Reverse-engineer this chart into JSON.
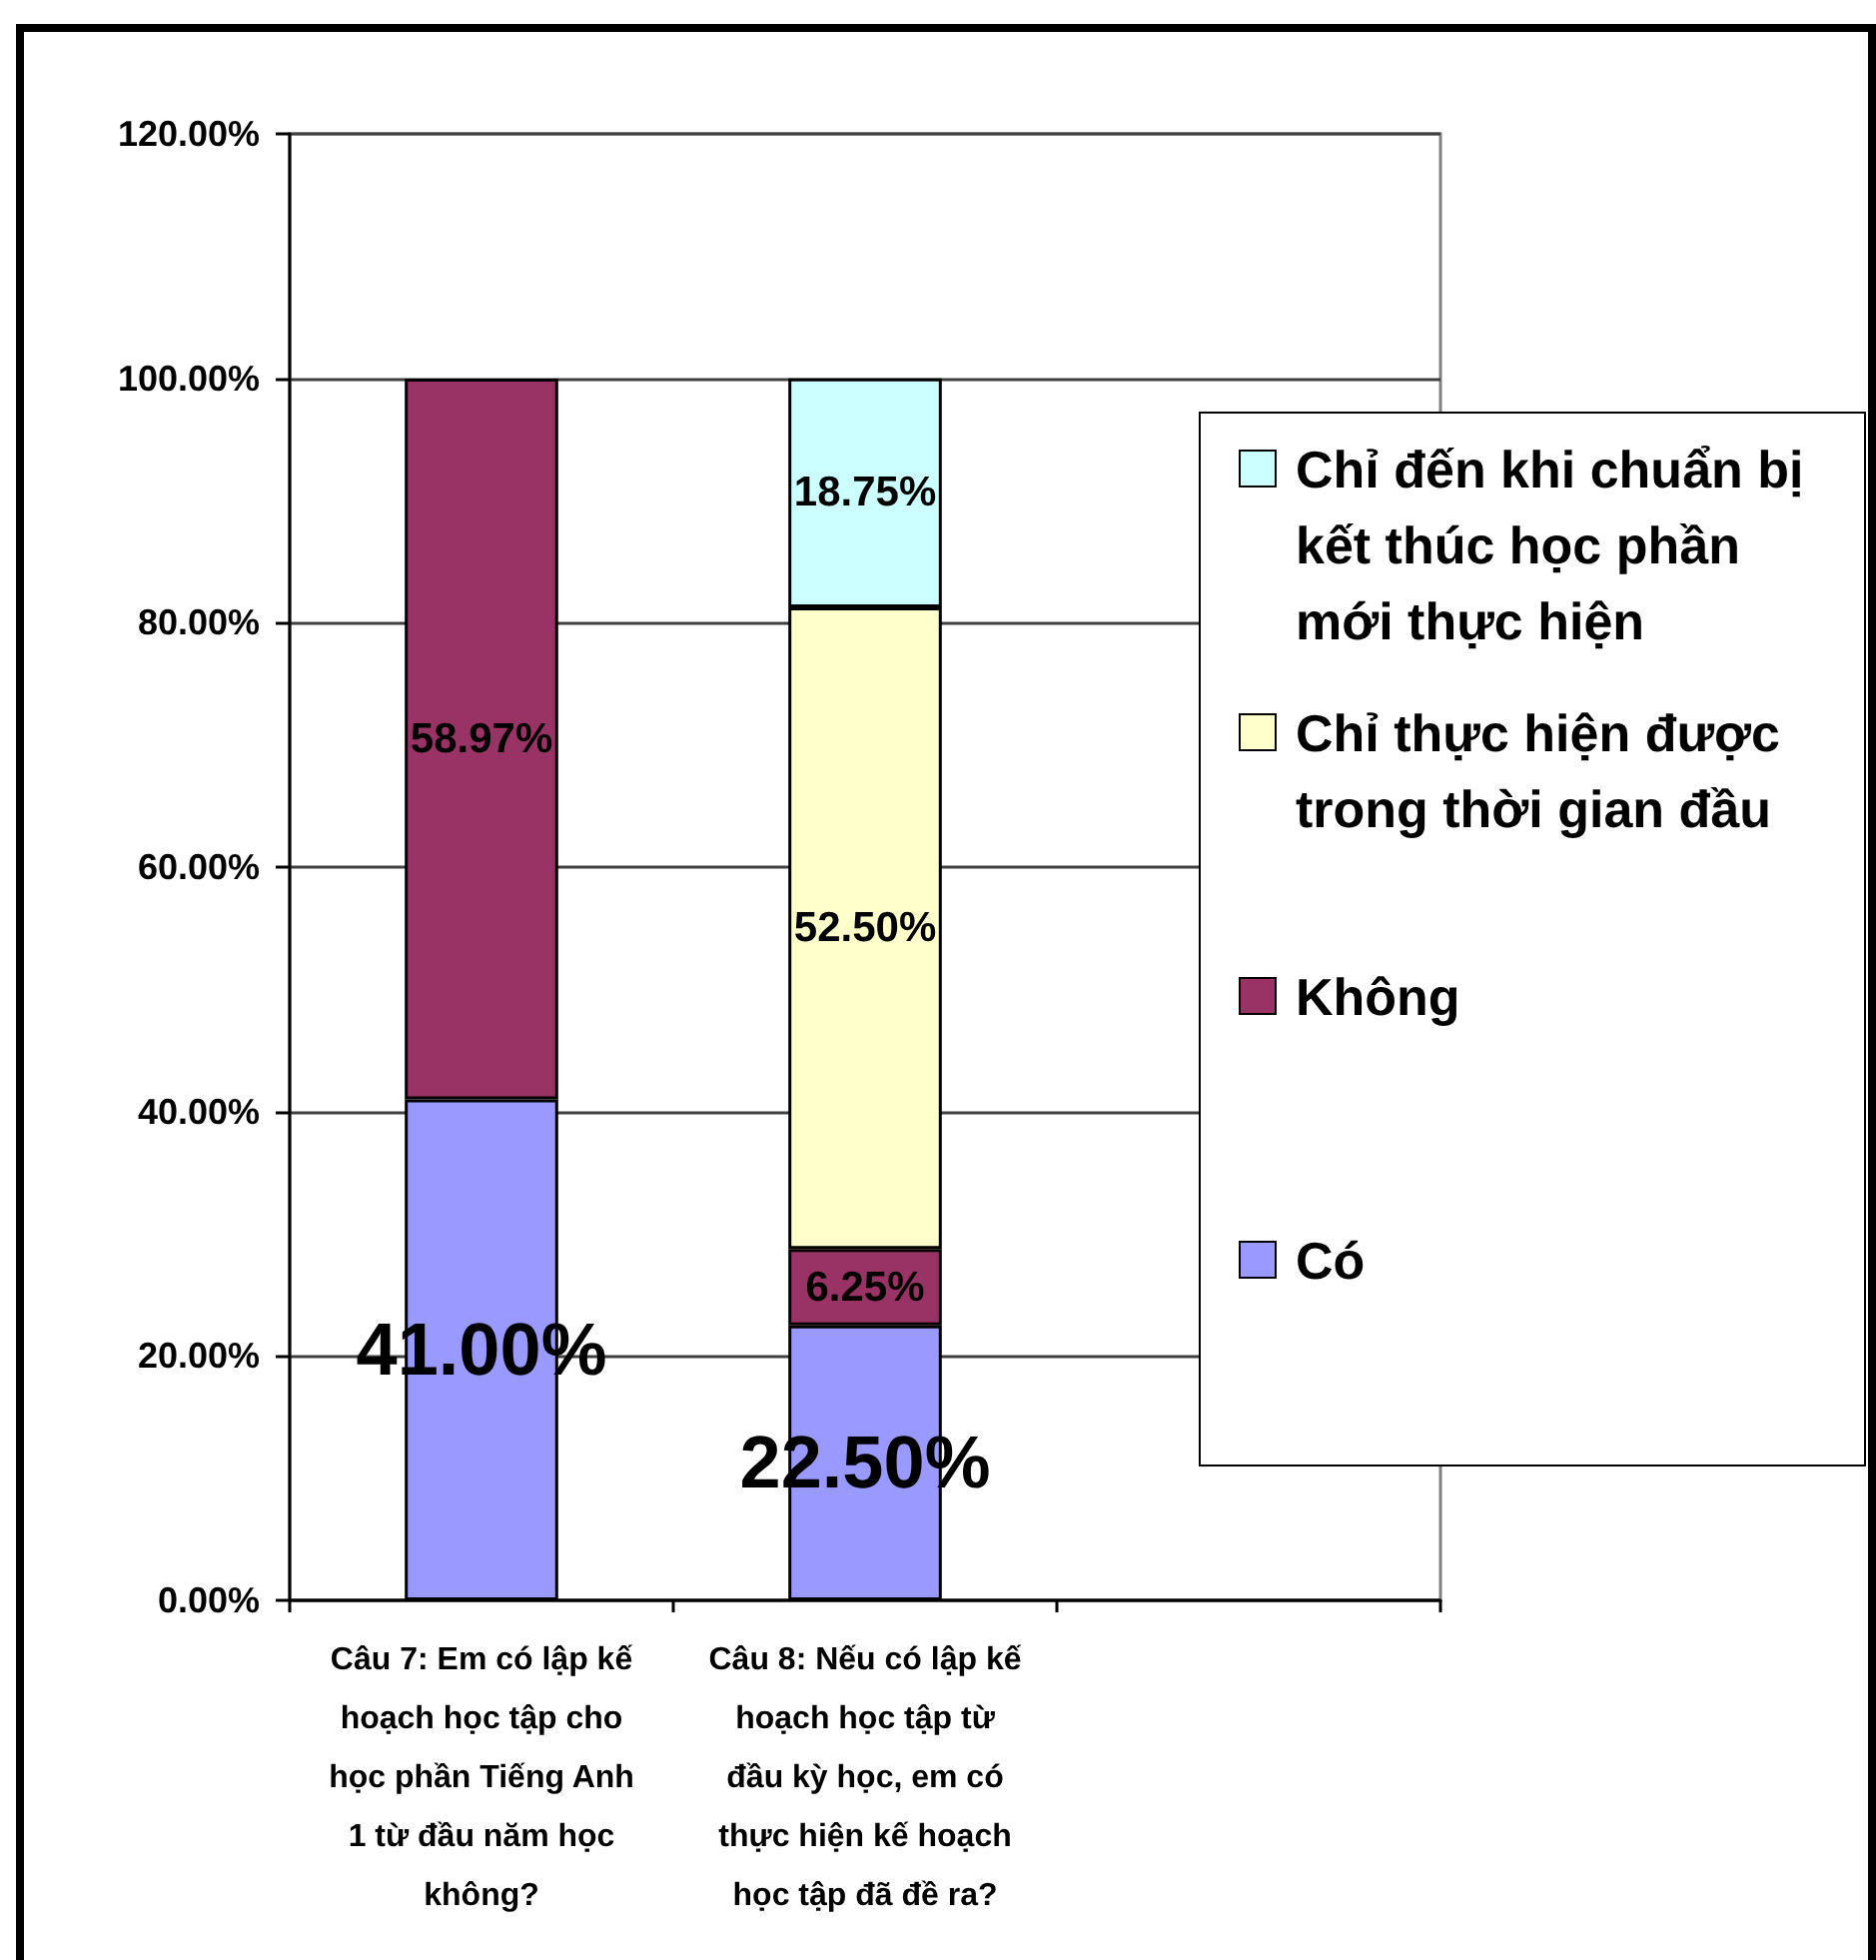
{
  "chart_data": {
    "type": "bar",
    "stacked": true,
    "categories": [
      "Câu 7: Em có lập kế hoạch học tập cho học phần Tiếng Anh 1 từ đầu năm học không?",
      "Câu 8: Nếu có lập kế hoạch học tập từ đầu kỳ học, em có thực hiện kế hoạch học tập đã đề ra?",
      null
    ],
    "series": [
      {
        "name": "Có",
        "color": "#9999ff",
        "values": [
          41,
          22.5,
          null
        ],
        "value_labels": [
          "41.00%",
          "22.50%",
          null
        ]
      },
      {
        "name": "Không",
        "color": "#993366",
        "values": [
          58.97,
          6.25,
          null
        ],
        "value_labels": [
          "58.97%",
          "6.25%",
          null
        ]
      },
      {
        "name": "Chỉ thực hiện được trong thời gian đầu",
        "color": "#ffffcc",
        "values": [
          null,
          52.5,
          null
        ],
        "value_labels": [
          null,
          "52.50%",
          null
        ]
      },
      {
        "name": "Chỉ đến khi chuẩn bị kết thúc học phần mới thực hiện",
        "color": "#ccffff",
        "values": [
          null,
          18.75,
          null
        ],
        "value_labels": [
          null,
          "18.75%",
          null
        ]
      }
    ],
    "ylim": [
      0,
      120
    ],
    "yticks": [
      {
        "value": 0,
        "label": "0.00%"
      },
      {
        "value": 20,
        "label": "20.00%"
      },
      {
        "value": 40,
        "label": "40.00%"
      },
      {
        "value": 60,
        "label": "60.00%"
      },
      {
        "value": 80,
        "label": "80.00%"
      },
      {
        "value": 100,
        "label": "100.00%"
      },
      {
        "value": 120,
        "label": "120.00%"
      }
    ],
    "grid": "y",
    "legend": "right"
  }
}
